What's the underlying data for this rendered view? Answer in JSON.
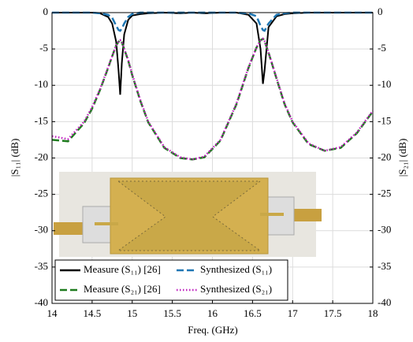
{
  "chart_data": {
    "type": "line",
    "x_label": "Freq. (GHz)",
    "y_label": "|S₁₁| (dB)",
    "y2_label": "|S₂₁| (dB)",
    "x": [
      14,
      14.2,
      14.4,
      14.5,
      14.6,
      14.7,
      14.75,
      14.8,
      14.83,
      14.85,
      14.87,
      14.9,
      14.95,
      15.0,
      15.1,
      15.2,
      15.4,
      15.6,
      15.75,
      15.9,
      16.1,
      16.3,
      16.45,
      16.55,
      16.6,
      16.63,
      16.65,
      16.7,
      16.8,
      16.9,
      17.0,
      17.2,
      17.4,
      17.6,
      17.8,
      18.0
    ],
    "xlim": [
      14,
      18
    ],
    "xticks": [
      14,
      14.5,
      15,
      15.5,
      16,
      16.5,
      17,
      17.5,
      18
    ],
    "ylim": [
      -40,
      0
    ],
    "yticks": [
      0,
      -5,
      -10,
      -15,
      -20,
      -25,
      -30,
      -35,
      -40
    ],
    "y2lim": [
      -40,
      0
    ],
    "y2ticks": [
      0,
      -5,
      -10,
      -15,
      -20,
      -25,
      -30,
      -35,
      -40
    ],
    "grid": true,
    "legend": "lower left",
    "series": [
      {
        "name": "Measure (S₁₁) [26]",
        "color": "#000000",
        "linestyle": "solid",
        "values": [
          0,
          0,
          0,
          0,
          -0.1,
          -0.6,
          -1.5,
          -4,
          -8,
          -11.3,
          -7,
          -3,
          -1,
          -0.4,
          -0.2,
          -0.1,
          0,
          -0.1,
          0,
          -0.1,
          0,
          0,
          -0.3,
          -1.5,
          -5,
          -9.8,
          -8,
          -2,
          -0.5,
          -0.2,
          -0.1,
          0,
          0,
          0,
          0,
          0
        ]
      },
      {
        "name": "Synthesized (S₁₁)",
        "color": "#1f77b4",
        "linestyle": "dashed",
        "values": [
          0,
          0,
          0,
          0,
          -0.1,
          -0.3,
          -0.7,
          -1.8,
          -2.4,
          -2.5,
          -2.2,
          -1.5,
          -0.6,
          -0.2,
          0,
          0,
          0,
          0,
          0,
          0,
          0,
          0,
          -0.1,
          -0.5,
          -1.8,
          -2.4,
          -2.5,
          -1.5,
          -0.3,
          -0.1,
          0,
          0,
          0,
          0,
          0,
          0
        ]
      },
      {
        "name": "Measure (S₂₁) [26]",
        "color": "#1e7b1e",
        "linestyle": "dashed",
        "axis": "y2",
        "values": [
          -17.5,
          -17.7,
          -15.2,
          -13.2,
          -10.6,
          -7.6,
          -6,
          -4.5,
          -4,
          -3.8,
          -4.1,
          -5,
          -6.6,
          -8.6,
          -12.1,
          -15.1,
          -18.6,
          -20,
          -20.2,
          -19.9,
          -17.6,
          -12.6,
          -7.6,
          -4.8,
          -3.8,
          -3.6,
          -3.9,
          -5.5,
          -9.1,
          -12.6,
          -15.1,
          -18.1,
          -19,
          -18.6,
          -16.6,
          -13.6
        ]
      },
      {
        "name": "Synthesized (S₂₁)",
        "color": "#c020c0",
        "linestyle": "dotted",
        "axis": "y2",
        "values": [
          -17,
          -17.4,
          -15,
          -13,
          -10.5,
          -7.5,
          -6,
          -4.5,
          -4,
          -3.8,
          -4,
          -5,
          -6.5,
          -8.5,
          -12,
          -15,
          -18.5,
          -19.9,
          -20.2,
          -19.8,
          -17.5,
          -12.5,
          -7.5,
          -4.8,
          -3.8,
          -3.6,
          -3.9,
          -5.5,
          -9,
          -12.5,
          -15,
          -18,
          -19,
          -18.5,
          -16.5,
          -13.5
        ]
      }
    ]
  }
}
